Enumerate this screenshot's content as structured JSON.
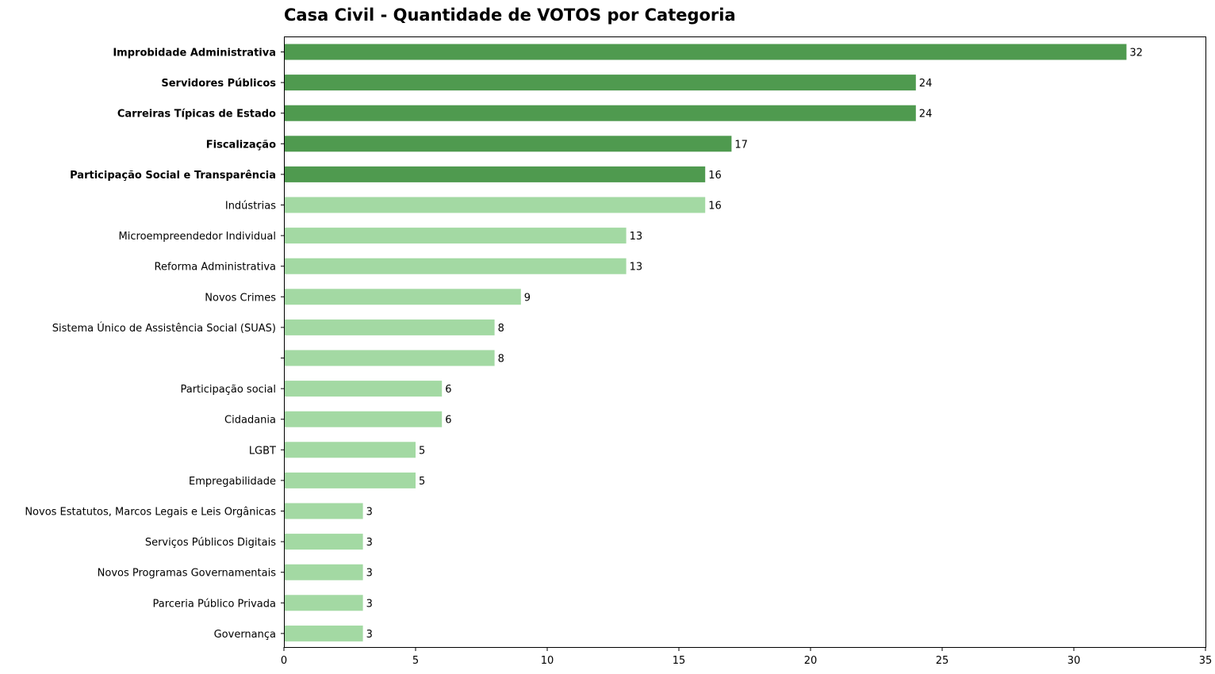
{
  "chart_data": {
    "type": "bar",
    "orientation": "horizontal",
    "title": "Casa Civil - Quantidade de VOTOS por Categoria",
    "xlabel": "",
    "ylabel": "",
    "xlim": [
      0,
      35
    ],
    "x_ticks": [
      "0",
      "5",
      "10",
      "15",
      "20",
      "25",
      "30",
      "35"
    ],
    "grid": false,
    "colors": {
      "highlight": "#4f9a4f",
      "normal": "#a3d9a3",
      "axis": "#000000"
    },
    "categories": [
      "Improbidade Administrativa",
      "Servidores Públicos",
      "Carreiras Típicas de Estado",
      "Fiscalização",
      "Participação Social e Transparência",
      "Indústrias",
      "Microempreendedor Individual",
      "Reforma Administrativa",
      "Novos Crimes",
      "Sistema Único de Assistência Social (SUAS)",
      "",
      "Participação social",
      "Cidadania",
      "LGBT",
      "Empregabilidade",
      "Novos Estatutos, Marcos Legais e Leis Orgânicas",
      "Serviços Públicos Digitais",
      "Novos Programas Governamentais",
      "Parceria Público Privada",
      "Governança"
    ],
    "values": [
      32,
      24,
      24,
      17,
      16,
      16,
      13,
      13,
      9,
      8,
      8,
      6,
      6,
      5,
      5,
      3,
      3,
      3,
      3,
      3
    ],
    "highlighted": [
      true,
      true,
      true,
      true,
      true,
      false,
      false,
      false,
      false,
      false,
      false,
      false,
      false,
      false,
      false,
      false,
      false,
      false,
      false,
      false
    ]
  }
}
